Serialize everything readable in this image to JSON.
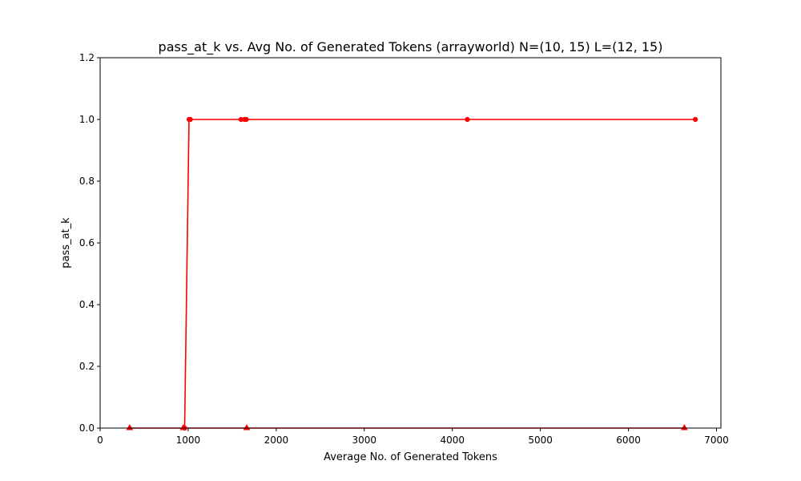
{
  "chart_data": {
    "type": "line",
    "title": "pass_at_k vs. Avg No. of Generated Tokens (arrayworld) N=(10, 15) L=(12, 15)",
    "xlabel": "Average No. of Generated Tokens",
    "ylabel": "pass_at_k",
    "xlim": [
      0,
      7050
    ],
    "ylim": [
      0,
      1.2
    ],
    "xticks": [
      0,
      1000,
      2000,
      3000,
      4000,
      5000,
      6000,
      7000
    ],
    "yticks": [
      0.0,
      0.2,
      0.4,
      0.6,
      0.8,
      1.0,
      1.2
    ],
    "grid": false,
    "series": [
      {
        "color": "#ff0000",
        "marker": "circle",
        "points": [
          {
            "x": 960,
            "y": 0.0
          },
          {
            "x": 1010,
            "y": 1.0
          },
          {
            "x": 1025,
            "y": 1.0
          },
          {
            "x": 1600,
            "y": 1.0
          },
          {
            "x": 1640,
            "y": 1.0
          },
          {
            "x": 1660,
            "y": 1.0
          },
          {
            "x": 4170,
            "y": 1.0
          },
          {
            "x": 6760,
            "y": 1.0
          }
        ]
      },
      {
        "color": "#ff0000",
        "marker": "triangle",
        "points": [
          {
            "x": 335,
            "y": 0.0
          },
          {
            "x": 945,
            "y": 0.0
          },
          {
            "x": 1665,
            "y": 0.0
          },
          {
            "x": 6635,
            "y": 0.0
          }
        ]
      }
    ]
  }
}
